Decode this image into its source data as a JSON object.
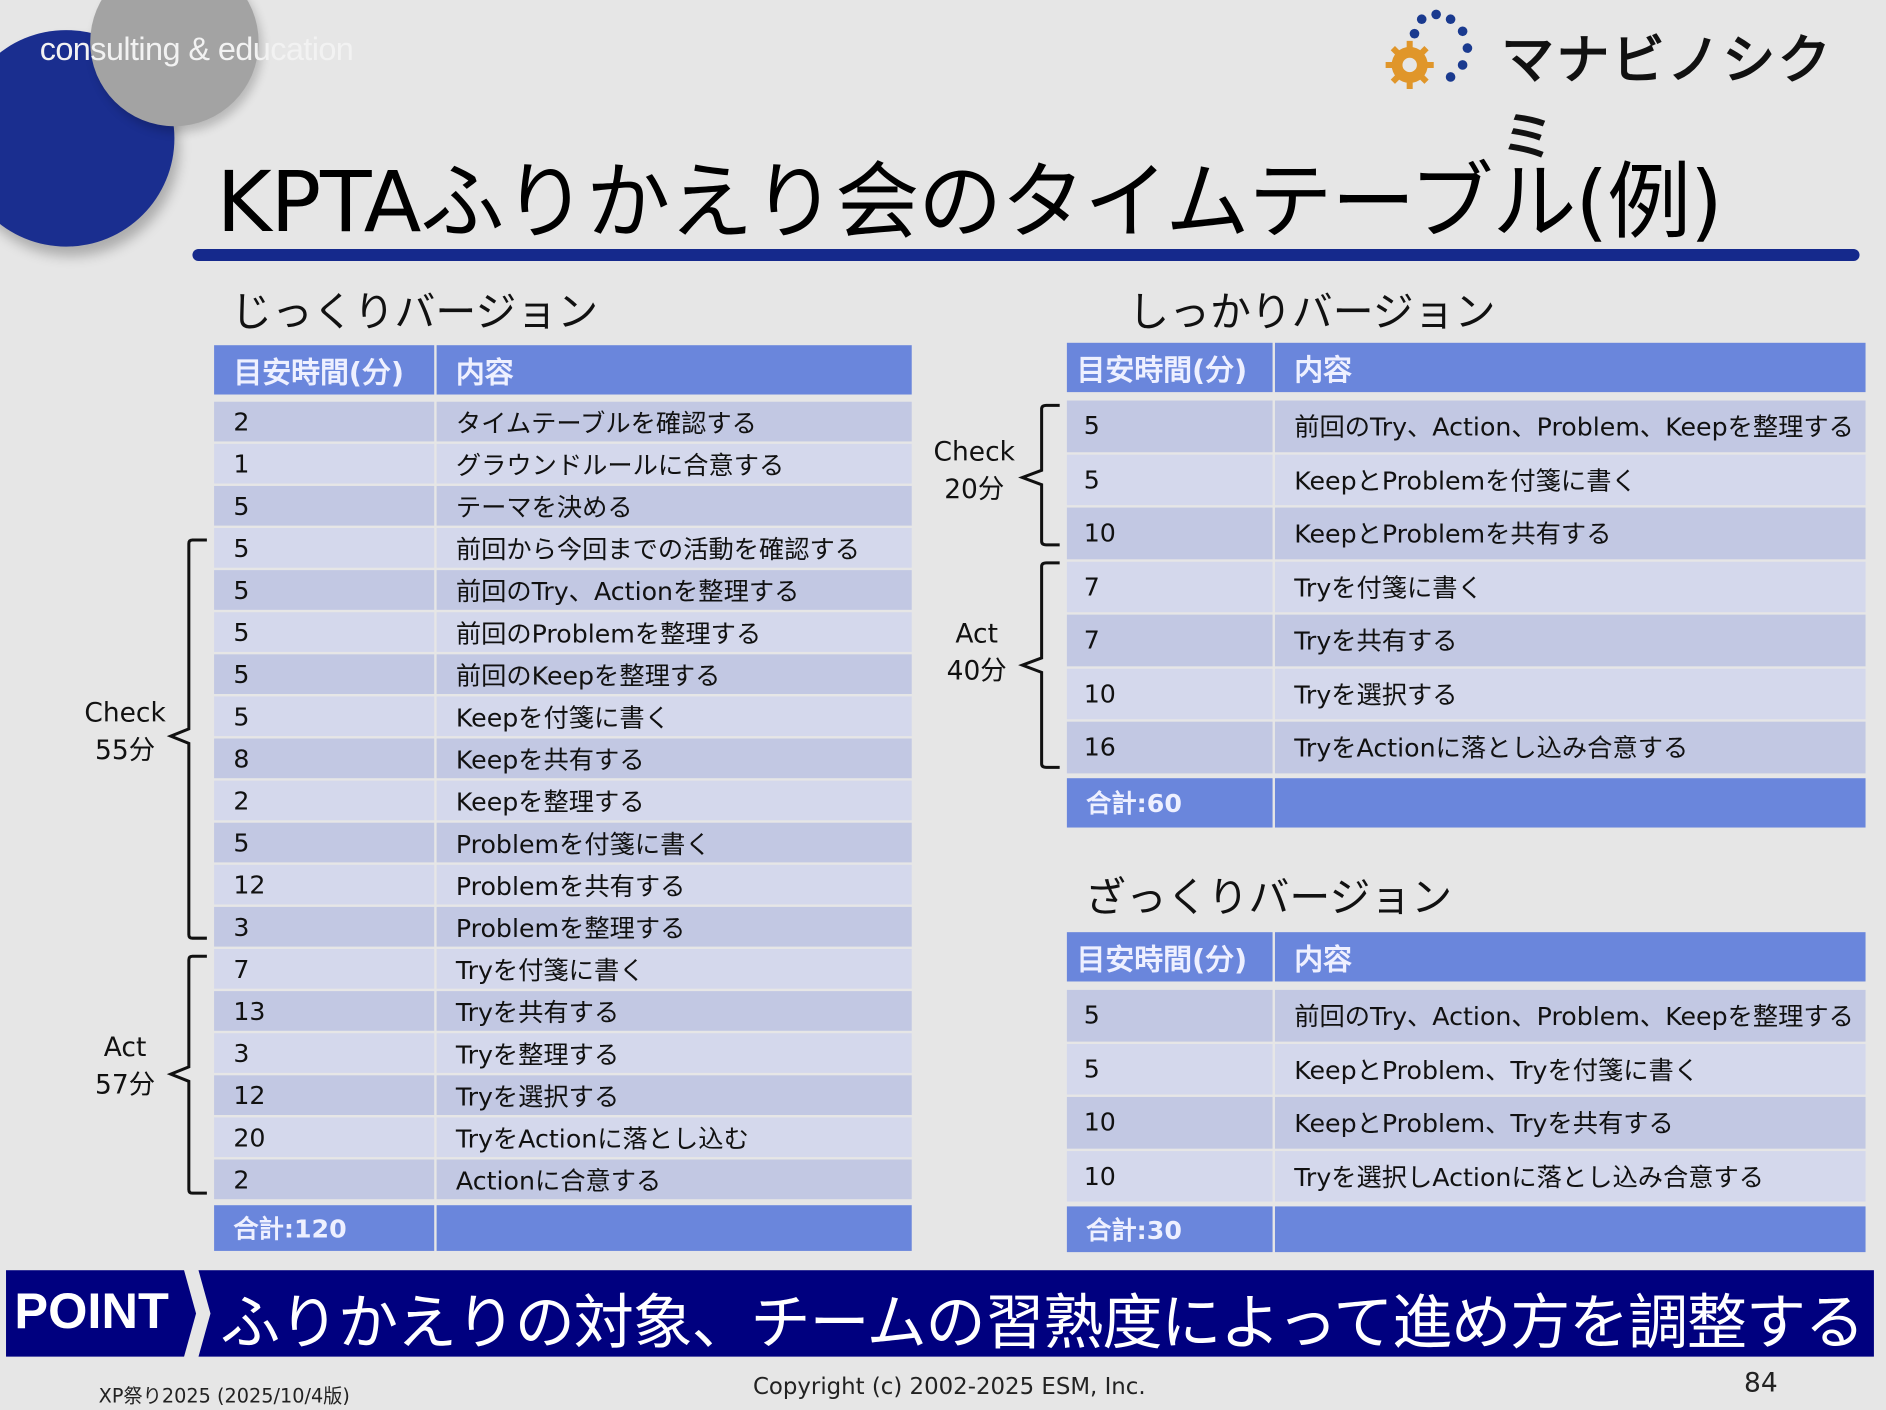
{
  "header": {
    "tagline": "consulting & education",
    "logo_text": "マナビノシクミ",
    "title": "KPTAふりかえり会のタイムテーブル(例)"
  },
  "colors": {
    "title_bar": "#15298c",
    "table_header": "#6a86dc",
    "row_a": "#c2c8e3",
    "row_b": "#d4d8ec",
    "point_banner": "#00007f"
  },
  "jikkuri": {
    "heading": "じっくりバージョン",
    "col_time": "目安時間(分)",
    "col_content": "内容",
    "rows": [
      {
        "time": "2",
        "content": "タイムテーブルを確認する"
      },
      {
        "time": "1",
        "content": "グラウンドルールに合意する"
      },
      {
        "time": "5",
        "content": "テーマを決める"
      },
      {
        "time": "5",
        "content": "前回から今回までの活動を確認する"
      },
      {
        "time": "5",
        "content": "前回のTry、Actionを整理する"
      },
      {
        "time": "5",
        "content": "前回のProblemを整理する"
      },
      {
        "time": "5",
        "content": "前回のKeepを整理する"
      },
      {
        "time": "5",
        "content": "Keepを付箋に書く"
      },
      {
        "time": "8",
        "content": "Keepを共有する"
      },
      {
        "time": "2",
        "content": "Keepを整理する"
      },
      {
        "time": "5",
        "content": "Problemを付箋に書く"
      },
      {
        "time": "12",
        "content": "Problemを共有する"
      },
      {
        "time": "3",
        "content": "Problemを整理する"
      },
      {
        "time": "7",
        "content": "Tryを付箋に書く"
      },
      {
        "time": "13",
        "content": "Tryを共有する"
      },
      {
        "time": "3",
        "content": "Tryを整理する"
      },
      {
        "time": "12",
        "content": "Tryを選択する"
      },
      {
        "time": "20",
        "content": "TryをActionに落とし込む"
      },
      {
        "time": "2",
        "content": "Actionに合意する"
      }
    ],
    "total": "合計:120",
    "check_label": "Check",
    "check_time": "55分",
    "act_label": "Act",
    "act_time": "57分"
  },
  "shikkari": {
    "heading": "しっかりバージョン",
    "col_time": "目安時間(分)",
    "col_content": "内容",
    "rows": [
      {
        "time": "5",
        "content": "前回のTry、Action、Problem、Keepを整理する"
      },
      {
        "time": "5",
        "content": "KeepとProblemを付箋に書く"
      },
      {
        "time": "10",
        "content": "KeepとProblemを共有する"
      },
      {
        "time": "7",
        "content": "Tryを付箋に書く"
      },
      {
        "time": "7",
        "content": "Tryを共有する"
      },
      {
        "time": "10",
        "content": "Tryを選択する"
      },
      {
        "time": "16",
        "content": "TryをActionに落とし込み合意する"
      }
    ],
    "total": "合計:60",
    "check_label": "Check",
    "check_time": "20分",
    "act_label": "Act",
    "act_time": "40分"
  },
  "zakkuri": {
    "heading": "ざっくりバージョン",
    "col_time": "目安時間(分)",
    "col_content": "内容",
    "rows": [
      {
        "time": "5",
        "content": "前回のTry、Action、Problem、Keepを整理する"
      },
      {
        "time": "5",
        "content": "KeepとProblem、Tryを付箋に書く"
      },
      {
        "time": "10",
        "content": "KeepとProblem、Tryを共有する"
      },
      {
        "time": "10",
        "content": "Tryを選択しActionに落とし込み合意する"
      }
    ],
    "total": "合計:30"
  },
  "point": {
    "label": "POINT",
    "text": "ふりかえりの対象、チームの習熟度によって進め方を調整する"
  },
  "footer": {
    "event": "XP祭り2025 (2025/10/4版)",
    "copyright": "Copyright (c) 2002-2025 ESM, Inc.",
    "page_number": "84"
  }
}
